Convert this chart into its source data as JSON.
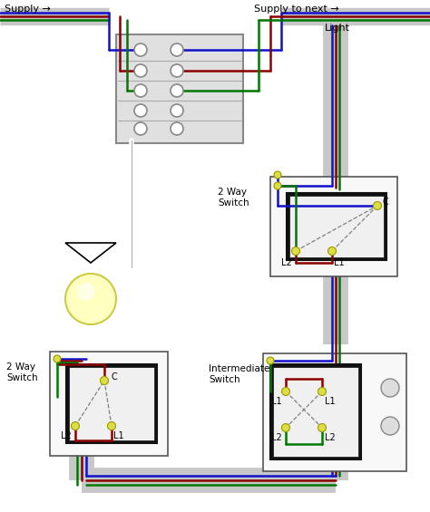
{
  "bg_color": "#ffffff",
  "wire_colors": {
    "blue": "#1111cc",
    "brown": "#8B0000",
    "green": "#007700",
    "gray": "#aaaaaa",
    "lgray": "#c8c8c8",
    "yellow_term": "#dddd44",
    "black": "#000000",
    "white": "#ffffff",
    "dark": "#222222"
  },
  "labels": {
    "supply": "Supply →",
    "supply_to_next": "Supply to next →",
    "light": "Light",
    "2way_top": "2 Way\nSwitch",
    "2way_bot": "2 Way\nSwitch",
    "intermediate": "Intermediate\nSwitch",
    "C": "C",
    "L1": "L1",
    "L2": "L2"
  }
}
